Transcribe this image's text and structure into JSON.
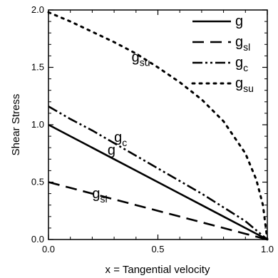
{
  "chart_data": {
    "type": "line",
    "title": "",
    "xlabel": "x = Tangential velocity",
    "ylabel": "Shear Stress",
    "xlim": [
      0.0,
      1.0
    ],
    "ylim": [
      0.0,
      2.0
    ],
    "grid": false,
    "legend_position": "top-right",
    "x_ticks": [
      0.0,
      0.5,
      1.0
    ],
    "x_tick_labels": [
      "0.0",
      "0.5",
      "1.0"
    ],
    "y_ticks": [
      0.0,
      0.5,
      1.0,
      1.5,
      2.0
    ],
    "y_tick_labels": [
      "0.0",
      "0.5",
      "1.0",
      "1.5",
      "2.0"
    ],
    "series": [
      {
        "name": "g",
        "label_base": "g",
        "label_sub": "",
        "style": "solid",
        "color": "#000000",
        "x": [
          0.0,
          0.1,
          0.2,
          0.3,
          0.4,
          0.5,
          0.6,
          0.7,
          0.8,
          0.9,
          1.0
        ],
        "y": [
          1.0,
          0.9,
          0.8,
          0.7,
          0.6,
          0.5,
          0.4,
          0.3,
          0.2,
          0.1,
          0.0
        ]
      },
      {
        "name": "gsl",
        "label_base": "g",
        "label_sub": "sl",
        "style": "dashed",
        "color": "#000000",
        "x": [
          0.0,
          0.1,
          0.2,
          0.3,
          0.4,
          0.5,
          0.6,
          0.7,
          0.8,
          0.9,
          1.0
        ],
        "y": [
          0.5,
          0.45,
          0.4,
          0.35,
          0.3,
          0.25,
          0.2,
          0.15,
          0.1,
          0.05,
          0.0
        ]
      },
      {
        "name": "gc",
        "label_base": "g",
        "label_sub": "c",
        "style": "dash-dot-dot",
        "color": "#000000",
        "x": [
          0.0,
          0.1,
          0.2,
          0.3,
          0.4,
          0.5,
          0.6,
          0.7,
          0.8,
          0.9,
          1.0
        ],
        "y": [
          1.16,
          1.05,
          0.95,
          0.84,
          0.73,
          0.62,
          0.51,
          0.4,
          0.28,
          0.16,
          0.0
        ]
      },
      {
        "name": "gsu",
        "label_base": "g",
        "label_sub": "su",
        "style": "dotted",
        "color": "#000000",
        "x": [
          0.0,
          0.1,
          0.2,
          0.3,
          0.4,
          0.5,
          0.6,
          0.7,
          0.8,
          0.9,
          0.95,
          0.98,
          1.0
        ],
        "y": [
          1.98,
          1.9,
          1.81,
          1.72,
          1.62,
          1.5,
          1.37,
          1.22,
          1.03,
          0.75,
          0.52,
          0.3,
          0.0
        ]
      }
    ],
    "annotations": [
      {
        "base": "g",
        "sub": "su",
        "x": 0.38,
        "y": 1.55
      },
      {
        "base": "g",
        "sub": "c",
        "x": 0.3,
        "y": 0.85
      },
      {
        "base": "g",
        "sub": "",
        "x": 0.27,
        "y": 0.74
      },
      {
        "base": "g",
        "sub": "sl",
        "x": 0.2,
        "y": 0.36
      }
    ]
  }
}
